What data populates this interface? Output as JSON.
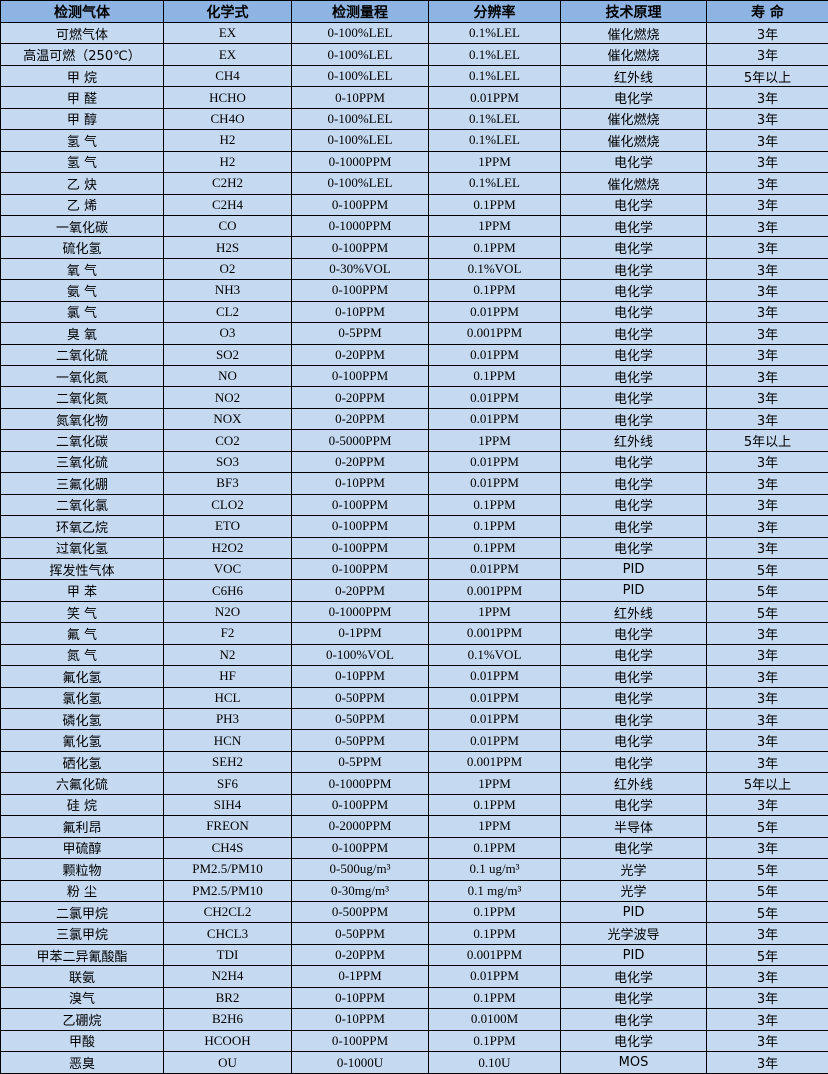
{
  "table": {
    "headers": [
      "检测气体",
      "化学式",
      "检测量程",
      "分辨率",
      "技术原理",
      "寿 命"
    ],
    "rows": [
      [
        "可燃气体",
        "EX",
        "0-100%LEL",
        "0.1%LEL",
        "催化燃烧",
        "3年"
      ],
      [
        "高温可燃（250℃）",
        "EX",
        "0-100%LEL",
        "0.1%LEL",
        "催化燃烧",
        "3年"
      ],
      [
        "甲 烷",
        "CH4",
        "0-100%LEL",
        "0.1%LEL",
        "红外线",
        "5年以上"
      ],
      [
        "甲 醛",
        "HCHO",
        "0-10PPM",
        "0.01PPM",
        "电化学",
        "3年"
      ],
      [
        "甲 醇",
        "CH4O",
        "0-100%LEL",
        "0.1%LEL",
        "催化燃烧",
        "3年"
      ],
      [
        "氢 气",
        "H2",
        "0-100%LEL",
        "0.1%LEL",
        "催化燃烧",
        "3年"
      ],
      [
        "氢 气",
        "H2",
        "0-1000PPM",
        "1PPM",
        "电化学",
        "3年"
      ],
      [
        "乙 炔",
        "C2H2",
        "0-100%LEL",
        "0.1%LEL",
        "催化燃烧",
        "3年"
      ],
      [
        "乙 烯",
        "C2H4",
        "0-100PPM",
        "0.1PPM",
        "电化学",
        "3年"
      ],
      [
        "一氧化碳",
        "CO",
        "0-1000PPM",
        "1PPM",
        "电化学",
        "3年"
      ],
      [
        "硫化氢",
        "H2S",
        "0-100PPM",
        "0.1PPM",
        "电化学",
        "3年"
      ],
      [
        "氧 气",
        "O2",
        "0-30%VOL",
        "0.1%VOL",
        "电化学",
        "3年"
      ],
      [
        "氨 气",
        "NH3",
        "0-100PPM",
        "0.1PPM",
        "电化学",
        "3年"
      ],
      [
        "氯 气",
        "CL2",
        "0-10PPM",
        "0.01PPM",
        "电化学",
        "3年"
      ],
      [
        "臭 氧",
        "O3",
        "0-5PPM",
        "0.001PPM",
        "电化学",
        "3年"
      ],
      [
        "二氧化硫",
        "SO2",
        "0-20PPM",
        "0.01PPM",
        "电化学",
        "3年"
      ],
      [
        "一氧化氮",
        "NO",
        "0-100PPM",
        "0.1PPM",
        "电化学",
        "3年"
      ],
      [
        "二氧化氮",
        "NO2",
        "0-20PPM",
        "0.01PPM",
        "电化学",
        "3年"
      ],
      [
        "氮氧化物",
        "NOX",
        "0-20PPM",
        "0.01PPM",
        "电化学",
        "3年"
      ],
      [
        "二氧化碳",
        "CO2",
        "0-5000PPM",
        "1PPM",
        "红外线",
        "5年以上"
      ],
      [
        "三氧化硫",
        "SO3",
        "0-20PPM",
        "0.01PPM",
        "电化学",
        "3年"
      ],
      [
        "三氟化硼",
        "BF3",
        "0-10PPM",
        "0.01PPM",
        "电化学",
        "3年"
      ],
      [
        "二氧化氯",
        "CLO2",
        "0-100PPM",
        "0.1PPM",
        "电化学",
        "3年"
      ],
      [
        "环氧乙烷",
        "ETO",
        "0-100PPM",
        "0.1PPM",
        "电化学",
        "3年"
      ],
      [
        "过氧化氢",
        "H2O2",
        "0-100PPM",
        "0.1PPM",
        "电化学",
        "3年"
      ],
      [
        "挥发性气体",
        "VOC",
        "0-100PPM",
        "0.01PPM",
        "PID",
        "5年"
      ],
      [
        "甲 苯",
        "C6H6",
        "0-20PPM",
        "0.001PPM",
        "PID",
        "5年"
      ],
      [
        "笑 气",
        "N2O",
        "0-1000PPM",
        "1PPM",
        "红外线",
        "5年"
      ],
      [
        "氟 气",
        "F2",
        "0-1PPM",
        "0.001PPM",
        "电化学",
        "3年"
      ],
      [
        "氮 气",
        "N2",
        "0-100%VOL",
        "0.1%VOL",
        "电化学",
        "3年"
      ],
      [
        "氟化氢",
        "HF",
        "0-10PPM",
        "0.01PPM",
        "电化学",
        "3年"
      ],
      [
        "氯化氢",
        "HCL",
        "0-50PPM",
        "0.01PPM",
        "电化学",
        "3年"
      ],
      [
        "磷化氢",
        "PH3",
        "0-50PPM",
        "0.01PPM",
        "电化学",
        "3年"
      ],
      [
        "氰化氢",
        "HCN",
        "0-50PPM",
        "0.01PPM",
        "电化学",
        "3年"
      ],
      [
        "硒化氢",
        "SEH2",
        "0-5PPM",
        "0.001PPM",
        "电化学",
        "3年"
      ],
      [
        "六氟化硫",
        "SF6",
        "0-1000PPM",
        "1PPM",
        "红外线",
        "5年以上"
      ],
      [
        "硅 烷",
        "SIH4",
        "0-100PPM",
        "0.1PPM",
        "电化学",
        "3年"
      ],
      [
        "氟利昂",
        "FREON",
        "0-2000PPM",
        "1PPM",
        "半导体",
        "5年"
      ],
      [
        "甲硫醇",
        "CH4S",
        "0-100PPM",
        "0.1PPM",
        "电化学",
        "3年"
      ],
      [
        "颗粒物",
        "PM2.5/PM10",
        "0-500ug/m³",
        "0.1 ug/m³",
        "光学",
        "5年"
      ],
      [
        "粉 尘",
        "PM2.5/PM10",
        "0-30mg/m³",
        "0.1 mg/m³",
        "光学",
        "5年"
      ],
      [
        "二氯甲烷",
        "CH2CL2",
        "0-500PPM",
        "0.1PPM",
        "PID",
        "5年"
      ],
      [
        "三氯甲烷",
        "CHCL3",
        "0-50PPM",
        "0.1PPM",
        "光学波导",
        "3年"
      ],
      [
        "甲苯二异氰酸酯",
        "TDI",
        "0-20PPM",
        "0.001PPM",
        "PID",
        "5年"
      ],
      [
        "联氨",
        "N2H4",
        "0-1PPM",
        "0.01PPM",
        "电化学",
        "3年"
      ],
      [
        "溴气",
        "BR2",
        "0-10PPM",
        "0.1PPM",
        "电化学",
        "3年"
      ],
      [
        "乙硼烷",
        "B2H6",
        "0-10PPM",
        "0.0100M",
        "电化学",
        "3年"
      ],
      [
        "甲酸",
        "HCOOH",
        "0-100PPM",
        "0.1PPM",
        "电化学",
        "3年"
      ],
      [
        "恶臭",
        "OU",
        "0-1000U",
        "0.10U",
        "MOS",
        "3年"
      ]
    ]
  },
  "colors": {
    "header_bg": "#8db4e2",
    "row_bg": "#c5d9f1",
    "border": "#000000"
  }
}
